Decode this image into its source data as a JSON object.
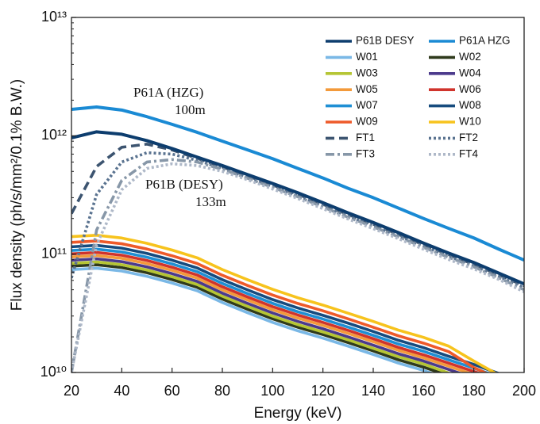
{
  "chart_data": {
    "type": "line",
    "x_label": "Energy (keV)",
    "y_label": "Flux density (ph/s/mm²/0.1% B.W.)",
    "ylog": true,
    "legend": "upper right",
    "xlim": [
      20,
      200
    ],
    "xticks": [
      20,
      40,
      60,
      80,
      100,
      120,
      140,
      160,
      180,
      200
    ],
    "ylim": [
      10000000000.0,
      10000000000000.0
    ],
    "yticks": [
      {
        "value": 10000000000.0,
        "label": "10¹⁰"
      },
      {
        "value": 100000000000.0,
        "label": "10¹¹"
      },
      {
        "value": 1000000000000.0,
        "label": "10¹²"
      },
      {
        "value": 10000000000000.0,
        "label": "10¹³"
      }
    ],
    "annotations": [
      "P61A (HZG)",
      "100m",
      "P61B (DESY)",
      "133m"
    ],
    "x": [
      20,
      30,
      40,
      50,
      60,
      70,
      80,
      90,
      100,
      110,
      120,
      130,
      140,
      150,
      160,
      170,
      180,
      190,
      200
    ],
    "series": [
      {
        "name": "P61B DESY",
        "color": "#0d3d6e",
        "dash": "solid",
        "values": [
          960000000000.0,
          1080000000000.0,
          1030000000000.0,
          910000000000.0,
          780000000000.0,
          660000000000.0,
          560000000000.0,
          470000000000.0,
          395000000000.0,
          330000000000.0,
          272000000000.0,
          223000000000.0,
          185000000000.0,
          152000000000.0,
          124000000000.0,
          102000000000.0,
          85000000000.0,
          69000000000.0,
          56000000000.0
        ]
      },
      {
        "name": "P61A HZG",
        "color": "#1a8ad4",
        "dash": "solid",
        "values": [
          1670000000000.0,
          1750000000000.0,
          1650000000000.0,
          1450000000000.0,
          1250000000000.0,
          1070000000000.0,
          900000000000.0,
          760000000000.0,
          640000000000.0,
          530000000000.0,
          440000000000.0,
          360000000000.0,
          300000000000.0,
          245000000000.0,
          200000000000.0,
          165000000000.0,
          137000000000.0,
          110000000000.0,
          89000000000.0
        ]
      },
      {
        "name": "W01",
        "color": "#7ab8e6",
        "dash": "solid",
        "values": [
          74000000000.0,
          76000000000.0,
          72000000000.0,
          65000000000.0,
          57000000000.0,
          49000000000.0,
          39000000000.0,
          32000000000.0,
          26500000000.0,
          22500000000.0,
          19500000000.0,
          16700000000.0,
          14200000000.0,
          12000000000.0,
          10400000000.0,
          8800000000.0,
          null,
          null,
          null
        ]
      },
      {
        "name": "W02",
        "color": "#2f3a1c",
        "dash": "solid",
        "values": [
          79200000000.0,
          81300000000.0,
          77000000000.0,
          69600000000.0,
          61000000000.0,
          52400000000.0,
          41700000000.0,
          34200000000.0,
          28400000000.0,
          24100000000.0,
          20900000000.0,
          17900000000.0,
          15200000000.0,
          12800000000.0,
          11100000000.0,
          9400000000.0,
          null,
          null,
          null
        ]
      },
      {
        "name": "W03",
        "color": "#b5c534",
        "dash": "solid",
        "values": [
          83600000000.0,
          85900000000.0,
          81400000000.0,
          73500000000.0,
          64400000000.0,
          55400000000.0,
          44100000000.0,
          36200000000.0,
          29900000000.0,
          25400000000.0,
          22000000000.0,
          18900000000.0,
          16000000000.0,
          13600000000.0,
          11800000000.0,
          9900000000.0,
          null,
          null,
          null
        ]
      },
      {
        "name": "W04",
        "color": "#4b3a8c",
        "dash": "solid",
        "values": [
          88800000000.0,
          91200000000.0,
          86400000000.0,
          78000000000.0,
          68400000000.0,
          58800000000.0,
          46800000000.0,
          38400000000.0,
          31800000000.0,
          27000000000.0,
          23400000000.0,
          20000000000.0,
          17000000000.0,
          14400000000.0,
          12500000000.0,
          10600000000.0,
          9000000000.0,
          null,
          null
        ]
      },
      {
        "name": "W05",
        "color": "#f39a3b",
        "dash": "solid",
        "values": [
          94700000000.0,
          97300000000.0,
          92200000000.0,
          83200000000.0,
          73000000000.0,
          62700000000.0,
          49900000000.0,
          41000000000.0,
          33900000000.0,
          28800000000.0,
          25000000000.0,
          21400000000.0,
          18200000000.0,
          15400000000.0,
          13300000000.0,
          11300000000.0,
          9600000000.0,
          null,
          null
        ]
      },
      {
        "name": "W06",
        "color": "#d0342c",
        "dash": "solid",
        "values": [
          100600000000.0,
          103400000000.0,
          97900000000.0,
          88400000000.0,
          77500000000.0,
          66600000000.0,
          53000000000.0,
          43500000000.0,
          36000000000.0,
          30600000000.0,
          26500000000.0,
          22700000000.0,
          19300000000.0,
          16300000000.0,
          14100000000.0,
          12000000000.0,
          10200000000.0,
          8600000000.0,
          null
        ]
      },
      {
        "name": "W07",
        "color": "#1f8fd4",
        "dash": "solid",
        "values": [
          107300000000.0,
          110200000000.0,
          104400000000.0,
          94300000000.0,
          82700000000.0,
          71100000000.0,
          56600000000.0,
          46400000000.0,
          38400000000.0,
          32600000000.0,
          28300000000.0,
          24200000000.0,
          20600000000.0,
          17400000000.0,
          15100000000.0,
          12800000000.0,
          10900000000.0,
          9100000000.0,
          null
        ]
      },
      {
        "name": "W08",
        "color": "#164b7e",
        "dash": "solid",
        "values": [
          115400000000.0,
          118600000000.0,
          112300000000.0,
          101400000000.0,
          88900000000.0,
          76400000000.0,
          60800000000.0,
          49900000000.0,
          41300000000.0,
          35100000000.0,
          30400000000.0,
          26100000000.0,
          22200000000.0,
          18700000000.0,
          16200000000.0,
          13700000000.0,
          11700000000.0,
          9800000000.0,
          null
        ]
      },
      {
        "name": "W09",
        "color": "#ee5a2a",
        "dash": "solid",
        "values": [
          125800000000.0,
          129200000000.0,
          122400000000.0,
          110500000000.0,
          96900000000.0,
          83300000000.0,
          66300000000.0,
          54400000000.0,
          45100000000.0,
          38300000000.0,
          33200000000.0,
          28400000000.0,
          24100000000.0,
          20400000000.0,
          17700000000.0,
          15000000000.0,
          11000000000.0,
          8800000000.0,
          null
        ]
      },
      {
        "name": "W10",
        "color": "#f7c31d",
        "dash": "solid",
        "values": [
          140600000000.0,
          144400000000.0,
          136800000000.0,
          123500000000.0,
          108300000000.0,
          93100000000.0,
          74100000000.0,
          60800000000.0,
          50400000000.0,
          42800000000.0,
          37100000000.0,
          31700000000.0,
          27000000000.0,
          22800000000.0,
          19800000000.0,
          16700000000.0,
          12500000000.0,
          9500000000.0,
          null
        ]
      },
      {
        "name": "FT1",
        "color": "#3c5470",
        "dash": "dashed",
        "values": [
          220000000000.0,
          550000000000.0,
          800000000000.0,
          850000000000.0,
          760000000000.0,
          645000000000.0,
          545000000000.0,
          458000000000.0,
          384000000000.0,
          320000000000.0,
          264000000000.0,
          216000000000.0,
          179000000000.0,
          147000000000.0,
          120000000000.0,
          99000000000.0,
          82000000000.0,
          67000000000.0,
          54000000000.0
        ]
      },
      {
        "name": "FT2",
        "color": "#5a7390",
        "dash": "dotted",
        "values": [
          63000000000.0,
          320000000000.0,
          600000000000.0,
          720000000000.0,
          700000000000.0,
          620000000000.0,
          530000000000.0,
          445000000000.0,
          372000000000.0,
          310000000000.0,
          256000000000.0,
          210000000000.0,
          174000000000.0,
          143000000000.0,
          117000000000.0,
          96000000000.0,
          80000000000.0,
          65000000000.0,
          52000000000.0
        ]
      },
      {
        "name": "FT3",
        "color": "#8797a8",
        "dash": "dashdot",
        "values": [
          10000000000.0,
          160000000000.0,
          420000000000.0,
          600000000000.0,
          630000000000.0,
          600000000000.0,
          520000000000.0,
          438000000000.0,
          366000000000.0,
          305000000000.0,
          250000000000.0,
          205000000000.0,
          170000000000.0,
          140000000000.0,
          114000000000.0,
          94000000000.0,
          78000000000.0,
          63000000000.0,
          50000000000.0
        ]
      },
      {
        "name": "FT4",
        "color": "#aeb8c8",
        "dash": "dotted",
        "values": [
          10000000000.0,
          120000000000.0,
          350000000000.0,
          530000000000.0,
          580000000000.0,
          560000000000.0,
          500000000000.0,
          425000000000.0,
          355000000000.0,
          295000000000.0,
          242000000000.0,
          198000000000.0,
          164000000000.0,
          135000000000.0,
          110000000000.0,
          90000000000.0,
          75000000000.0,
          61000000000.0,
          48000000000.0
        ]
      }
    ]
  }
}
